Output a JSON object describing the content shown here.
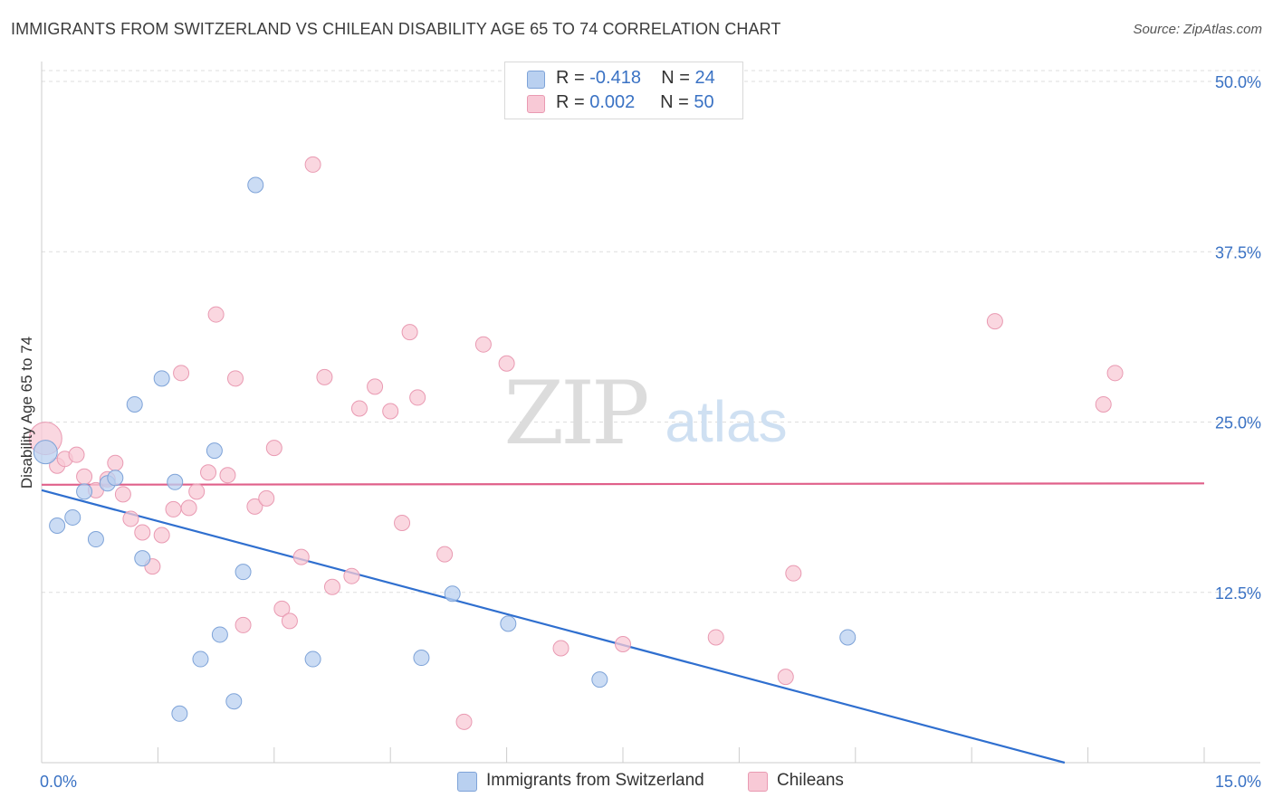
{
  "header": {
    "title": "IMMIGRANTS FROM SWITZERLAND VS CHILEAN DISABILITY AGE 65 TO 74 CORRELATION CHART",
    "source": "Source: ZipAtlas.com"
  },
  "legend_top": {
    "rows": [
      {
        "r_label": "R =",
        "r_value": "-0.418",
        "n_label": "N =",
        "n_value": "24"
      },
      {
        "r_label": "R =",
        "r_value": "0.002",
        "n_label": "N =",
        "n_value": "50"
      }
    ]
  },
  "legend_bottom": {
    "items": [
      "Immigrants from Switzerland",
      "Chileans"
    ]
  },
  "watermark": {
    "zip": "ZIP",
    "atlas": "atlas"
  },
  "colors": {
    "swiss_fill": "#b9d0f0",
    "swiss_stroke": "#7ea3d8",
    "swiss_line": "#2f6fcf",
    "chile_fill": "#f8c9d6",
    "chile_stroke": "#e99ab2",
    "chile_line": "#e0608a",
    "tick_label": "#3a72c4",
    "grid": "#dddddd"
  },
  "chart_data": {
    "type": "scatter",
    "title": "IMMIGRANTS FROM SWITZERLAND VS CHILEAN DISABILITY AGE 65 TO 74 CORRELATION CHART",
    "xlabel": "",
    "ylabel": "Disability Age 65 to 74",
    "xlim": [
      0,
      15
    ],
    "ylim": [
      0,
      51
    ],
    "x_tick_labels": [
      "0.0%",
      "15.0%"
    ],
    "y_ticks": [
      12.5,
      25.0,
      37.5,
      50.0
    ],
    "y_tick_labels": [
      "12.5%",
      "25.0%",
      "37.5%",
      "50.0%"
    ],
    "grid": true,
    "legend_position": "top-center",
    "series": [
      {
        "name": "Immigrants from Switzerland",
        "r": -0.418,
        "n": 24,
        "points": [
          [
            0.05,
            22.8
          ],
          [
            0.2,
            17.4
          ],
          [
            0.4,
            18.0
          ],
          [
            0.55,
            19.9
          ],
          [
            0.7,
            16.4
          ],
          [
            0.85,
            20.5
          ],
          [
            0.95,
            20.9
          ],
          [
            1.2,
            26.3
          ],
          [
            1.3,
            15.0
          ],
          [
            1.55,
            28.2
          ],
          [
            1.72,
            20.6
          ],
          [
            1.78,
            3.6
          ],
          [
            2.05,
            7.6
          ],
          [
            2.23,
            22.9
          ],
          [
            2.3,
            9.4
          ],
          [
            2.48,
            4.5
          ],
          [
            2.6,
            14.0
          ],
          [
            2.76,
            42.4
          ],
          [
            3.5,
            7.6
          ],
          [
            4.9,
            7.7
          ],
          [
            5.3,
            12.4
          ],
          [
            6.02,
            10.2
          ],
          [
            7.2,
            6.1
          ],
          [
            10.4,
            9.2
          ]
        ],
        "trend": {
          "x": [
            0,
            13.2
          ],
          "y": [
            20.0,
            0
          ]
        }
      },
      {
        "name": "Chileans",
        "r": 0.002,
        "n": 50,
        "points": [
          [
            0.05,
            23.8
          ],
          [
            0.2,
            21.8
          ],
          [
            0.3,
            22.3
          ],
          [
            0.45,
            22.6
          ],
          [
            0.55,
            21.0
          ],
          [
            0.7,
            20.0
          ],
          [
            0.85,
            20.8
          ],
          [
            0.95,
            22.0
          ],
          [
            1.05,
            19.7
          ],
          [
            1.15,
            17.9
          ],
          [
            1.3,
            16.9
          ],
          [
            1.43,
            14.4
          ],
          [
            1.55,
            16.7
          ],
          [
            1.7,
            18.6
          ],
          [
            1.8,
            28.6
          ],
          [
            1.9,
            18.7
          ],
          [
            2.0,
            19.9
          ],
          [
            2.15,
            21.3
          ],
          [
            2.25,
            32.9
          ],
          [
            2.4,
            21.1
          ],
          [
            2.5,
            28.2
          ],
          [
            2.6,
            10.1
          ],
          [
            2.75,
            18.8
          ],
          [
            2.9,
            19.4
          ],
          [
            3.0,
            23.1
          ],
          [
            3.1,
            11.3
          ],
          [
            3.2,
            10.4
          ],
          [
            3.35,
            15.1
          ],
          [
            3.5,
            43.9
          ],
          [
            3.65,
            28.3
          ],
          [
            3.75,
            12.9
          ],
          [
            4.0,
            13.7
          ],
          [
            4.1,
            26.0
          ],
          [
            4.3,
            27.6
          ],
          [
            4.5,
            25.8
          ],
          [
            4.65,
            17.6
          ],
          [
            4.75,
            31.6
          ],
          [
            4.85,
            26.8
          ],
          [
            5.2,
            15.3
          ],
          [
            5.45,
            3.0
          ],
          [
            5.7,
            30.7
          ],
          [
            6.0,
            29.3
          ],
          [
            6.7,
            8.4
          ],
          [
            7.5,
            8.7
          ],
          [
            8.7,
            9.2
          ],
          [
            9.6,
            6.3
          ],
          [
            9.7,
            13.9
          ],
          [
            12.3,
            32.4
          ],
          [
            13.7,
            26.3
          ],
          [
            13.85,
            28.6
          ]
        ],
        "trend": {
          "x": [
            0,
            15
          ],
          "y": [
            20.4,
            20.5
          ]
        }
      }
    ]
  }
}
